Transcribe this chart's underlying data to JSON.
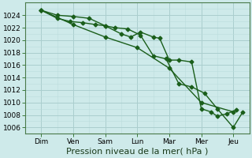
{
  "bg_color": "#ceeaea",
  "grid_color_major": "#aacece",
  "grid_color_minor": "#bcdcdc",
  "line_color": "#1a5e1a",
  "marker": "D",
  "marker_size": 2.5,
  "line_width": 1.0,
  "xlabel": "Pression niveau de la mer( hPa )",
  "xlabel_fontsize": 8,
  "tick_fontsize": 6.5,
  "ylim": [
    1005.0,
    1026.0
  ],
  "yticks": [
    1006,
    1008,
    1010,
    1012,
    1014,
    1016,
    1018,
    1020,
    1022,
    1024
  ],
  "xlim": [
    0,
    7.0
  ],
  "xtick_positions": [
    0.5,
    1.5,
    2.5,
    3.5,
    4.5,
    5.5,
    6.5
  ],
  "xticklabels": [
    "Dim",
    "Ven",
    "Sam",
    "Lun",
    "Mar",
    "Mer",
    "Jeu"
  ],
  "series1_x": [
    0.5,
    1.0,
    1.5,
    2.0,
    2.5,
    3.0,
    3.3,
    3.6,
    4.0,
    4.2,
    4.5,
    4.8,
    5.2,
    5.5,
    5.8,
    6.0,
    6.3,
    6.6
  ],
  "series1_y": [
    1024.8,
    1024.0,
    1023.8,
    1023.5,
    1022.3,
    1021.0,
    1020.5,
    1021.3,
    1020.5,
    1020.3,
    1016.8,
    1016.8,
    1016.5,
    1009.0,
    1008.5,
    1007.8,
    1008.2,
    1008.8
  ],
  "series2_x": [
    0.5,
    1.0,
    1.4,
    1.8,
    2.2,
    2.5,
    2.8,
    3.2,
    3.6,
    4.0,
    4.4,
    4.8,
    5.2,
    5.6,
    6.0,
    6.5,
    6.8
  ],
  "series2_y": [
    1024.8,
    1023.5,
    1023.0,
    1022.8,
    1022.5,
    1022.3,
    1022.0,
    1021.8,
    1020.8,
    1017.5,
    1017.0,
    1013.0,
    1012.5,
    1011.5,
    1009.0,
    1006.0,
    1008.5
  ],
  "series3_x": [
    0.5,
    1.5,
    2.5,
    3.5,
    4.5,
    5.5,
    6.5
  ],
  "series3_y": [
    1024.8,
    1022.5,
    1020.5,
    1018.8,
    1015.5,
    1010.0,
    1008.5
  ]
}
